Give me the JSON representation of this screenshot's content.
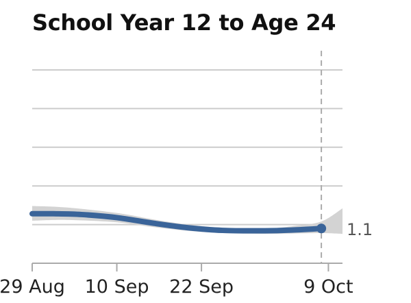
{
  "chart_data": {
    "type": "line",
    "title": "School Year 12 to Age 24",
    "xlabel": "",
    "ylabel": "",
    "x_ticks": [
      "29 Aug",
      "10 Sep",
      "22 Sep",
      "9 Oct"
    ],
    "xlim": [
      "2021-08-29",
      "2021-10-12"
    ],
    "ylim": [
      0,
      5
    ],
    "y_gridlines": [
      1,
      2,
      3,
      4,
      5
    ],
    "y_tick_labels_shown": false,
    "grid": true,
    "legend": "none",
    "reference_line": {
      "x": "2021-10-09",
      "style": "dashed"
    },
    "series": [
      {
        "values": [
          {
            "x": "2021-08-29",
            "y": 1.28
          },
          {
            "x": "2021-09-01",
            "y": 1.28
          },
          {
            "x": "2021-09-05",
            "y": 1.26
          },
          {
            "x": "2021-09-10",
            "y": 1.18
          },
          {
            "x": "2021-09-15",
            "y": 1.04
          },
          {
            "x": "2021-09-20",
            "y": 0.92
          },
          {
            "x": "2021-09-25",
            "y": 0.85
          },
          {
            "x": "2021-10-01",
            "y": 0.84
          },
          {
            "x": "2021-10-05",
            "y": 0.86
          },
          {
            "x": "2021-10-09",
            "y": 0.9
          }
        ],
        "band": [
          {
            "x": "2021-08-29",
            "lo": 1.1,
            "hi": 1.48
          },
          {
            "x": "2021-09-03",
            "lo": 1.12,
            "hi": 1.44
          },
          {
            "x": "2021-09-10",
            "lo": 1.06,
            "hi": 1.3
          },
          {
            "x": "2021-09-15",
            "lo": 0.94,
            "hi": 1.14
          },
          {
            "x": "2021-09-20",
            "lo": 0.84,
            "hi": 1.0
          },
          {
            "x": "2021-09-25",
            "lo": 0.78,
            "hi": 0.92
          },
          {
            "x": "2021-10-01",
            "lo": 0.76,
            "hi": 0.9
          },
          {
            "x": "2021-10-05",
            "lo": 0.77,
            "hi": 0.96
          },
          {
            "x": "2021-10-09",
            "lo": 0.78,
            "hi": 1.08
          },
          {
            "x": "2021-10-12",
            "lo": 0.76,
            "hi": 1.42
          }
        ],
        "color": "#3a6499",
        "band_color": "#d3d3d3",
        "end_label": "1.1"
      }
    ]
  }
}
